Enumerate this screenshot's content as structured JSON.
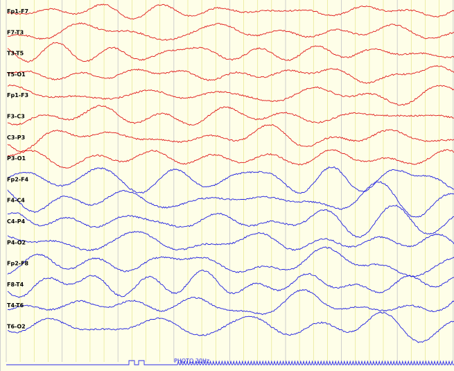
{
  "viewer": {
    "background": "#fefee8",
    "gridline_color": "#e6e68a",
    "second_line_color": "#c9c9c9",
    "left_hemisphere_color": "#e01818",
    "right_hemisphere_color": "#1a1ae0",
    "photic_color": "#2a2ae8"
  },
  "channels": [
    {
      "label": "Fp1-F7",
      "hemisphere": "left"
    },
    {
      "label": "F7-T3",
      "hemisphere": "left"
    },
    {
      "label": "T3-T5",
      "hemisphere": "left"
    },
    {
      "label": "T5-O1",
      "hemisphere": "left"
    },
    {
      "label": "Fp1-F3",
      "hemisphere": "left"
    },
    {
      "label": "F3-C3",
      "hemisphere": "left"
    },
    {
      "label": "C3-P3",
      "hemisphere": "left"
    },
    {
      "label": "P3-O1",
      "hemisphere": "left"
    },
    {
      "label": "Fp2-F4",
      "hemisphere": "right"
    },
    {
      "label": "F4-C4",
      "hemisphere": "right"
    },
    {
      "label": "C4-P4",
      "hemisphere": "right"
    },
    {
      "label": "P4-O2",
      "hemisphere": "right"
    },
    {
      "label": "Fp2-F8",
      "hemisphere": "right"
    },
    {
      "label": "F8-T4",
      "hemisphere": "right"
    },
    {
      "label": "T4-T6",
      "hemisphere": "right"
    },
    {
      "label": "T6-O2",
      "hemisphere": "right"
    }
  ],
  "photic": {
    "label": "PHOTO 20Hz"
  }
}
